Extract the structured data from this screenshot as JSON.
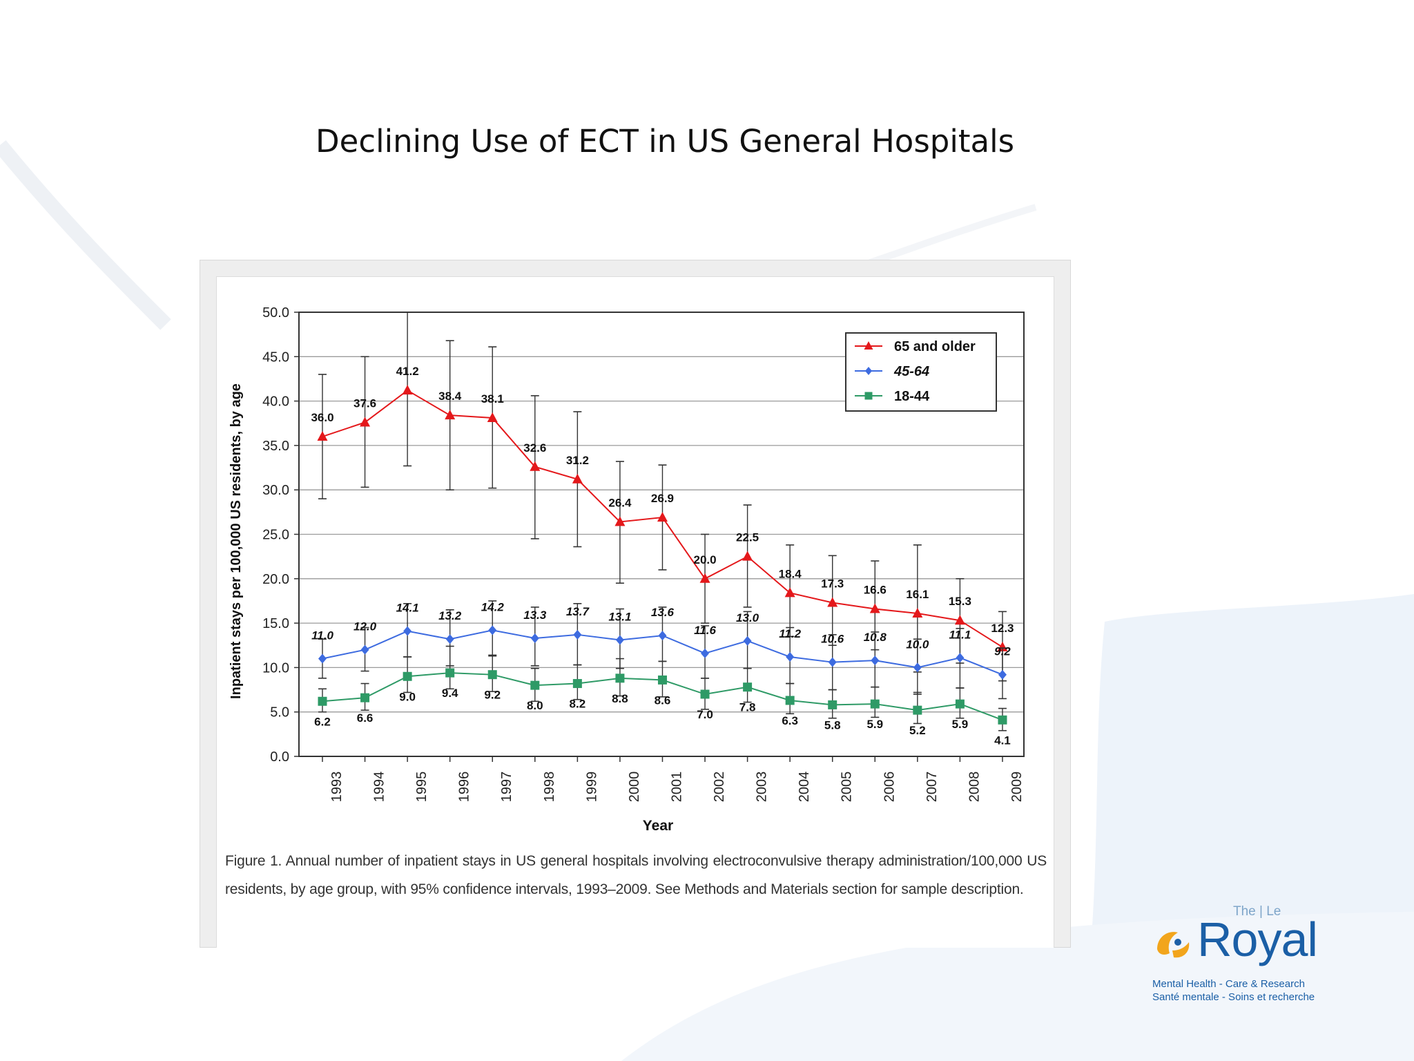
{
  "slide": {
    "title": "Declining Use of ECT in US General Hospitals"
  },
  "colors": {
    "series_65": "#e4181b",
    "series_45": "#3d6be0",
    "series_18": "#2e9a66",
    "brand_blue": "#1b5fa6",
    "brand_orange": "#f2a51c"
  },
  "chart_data": {
    "type": "line",
    "title": "",
    "xlabel": "Year",
    "ylabel": "Inpatient stays per 100,000 US residents, by age",
    "ylim": [
      0,
      50
    ],
    "yticks": [
      "0.0",
      "5.0",
      "10.0",
      "15.0",
      "20.0",
      "25.0",
      "30.0",
      "35.0",
      "40.0",
      "45.0",
      "50.0"
    ],
    "grid": "horizontal",
    "legend_position": "top-right",
    "categories": [
      "1993",
      "1994",
      "1995",
      "1996",
      "1997",
      "1998",
      "1999",
      "2000",
      "2001",
      "2002",
      "2003",
      "2004",
      "2005",
      "2006",
      "2007",
      "2008",
      "2009"
    ],
    "series": [
      {
        "name": "65 and older",
        "marker": "triangle",
        "label_style": "bold",
        "values": [
          36.0,
          37.6,
          41.2,
          38.4,
          38.1,
          32.6,
          31.2,
          26.4,
          26.9,
          20.0,
          22.5,
          18.4,
          17.3,
          16.6,
          16.1,
          15.3,
          12.3
        ],
        "labels": [
          "36.0",
          "37.6",
          "41.2",
          "38.4",
          "38.1",
          "32.6",
          "31.2",
          "26.4",
          "26.9",
          "20.0",
          "22.5",
          "18.4",
          "17.3",
          "16.6",
          "16.1",
          "15.3",
          "12.3"
        ],
        "ci_low": [
          29.0,
          30.3,
          32.7,
          30.0,
          30.2,
          24.5,
          23.6,
          19.5,
          21.0,
          15.0,
          16.8,
          13.5,
          12.5,
          12.0,
          9.5,
          10.5,
          8.5
        ],
        "ci_high": [
          43.0,
          45.0,
          50.0,
          46.8,
          46.1,
          40.6,
          38.8,
          33.2,
          32.8,
          25.0,
          28.3,
          23.8,
          22.6,
          22.0,
          23.8,
          20.0,
          16.3
        ]
      },
      {
        "name": "45-64",
        "marker": "diamond",
        "label_style": "bold-italic",
        "values": [
          11.0,
          12.0,
          14.1,
          13.2,
          14.2,
          13.3,
          13.7,
          13.1,
          13.6,
          11.6,
          13.0,
          11.2,
          10.6,
          10.8,
          10.0,
          11.1,
          9.2
        ],
        "labels": [
          "11.0",
          "12.0",
          "14.1",
          "13.2",
          "14.2",
          "13.3",
          "13.7",
          "13.1",
          "13.6",
          "11.6",
          "13.0",
          "11.2",
          "10.6",
          "10.8",
          "10.0",
          "11.1",
          "9.2"
        ],
        "ci_low": [
          8.8,
          9.6,
          11.2,
          10.2,
          11.3,
          10.2,
          10.3,
          9.9,
          10.7,
          8.8,
          9.9,
          8.2,
          7.5,
          7.8,
          7.0,
          7.7,
          6.5
        ],
        "ci_high": [
          13.2,
          14.5,
          17.2,
          16.5,
          17.5,
          16.8,
          17.2,
          16.6,
          16.8,
          14.7,
          16.3,
          14.5,
          13.7,
          14.0,
          13.2,
          14.4,
          12.2
        ]
      },
      {
        "name": "18-44",
        "marker": "square",
        "label_style": "bold",
        "values": [
          6.2,
          6.6,
          9.0,
          9.4,
          9.2,
          8.0,
          8.2,
          8.8,
          8.6,
          7.0,
          7.8,
          6.3,
          5.8,
          5.9,
          5.2,
          5.9,
          4.1
        ],
        "labels": [
          "6.2",
          "6.6",
          "9.0",
          "9.4",
          "9.2",
          "8.0",
          "8.2",
          "8.8",
          "8.6",
          "7.0",
          "7.8",
          "6.3",
          "5.8",
          "5.9",
          "5.2",
          "5.9",
          "4.1"
        ],
        "ci_low": [
          5.0,
          5.2,
          7.2,
          7.6,
          7.3,
          6.2,
          6.4,
          6.8,
          6.7,
          5.3,
          6.1,
          4.8,
          4.3,
          4.4,
          3.7,
          4.3,
          2.9
        ],
        "ci_high": [
          7.6,
          8.2,
          11.2,
          12.4,
          11.4,
          9.9,
          10.3,
          11.0,
          10.7,
          8.8,
          9.9,
          8.2,
          7.5,
          7.8,
          7.2,
          7.7,
          5.4
        ]
      }
    ]
  },
  "figure": {
    "caption": "Figure 1. Annual number of inpatient stays in US general hospitals involving electroconvulsive therapy administration/100,000 US residents, by age group, with 95% confidence intervals, 1993–2009. See Methods and Materials section for sample description."
  },
  "logo": {
    "top_text": "The | Le",
    "name": "Royal",
    "line1": "Mental Health - Care & Research",
    "line2": "Santé mentale - Soins et recherche"
  }
}
